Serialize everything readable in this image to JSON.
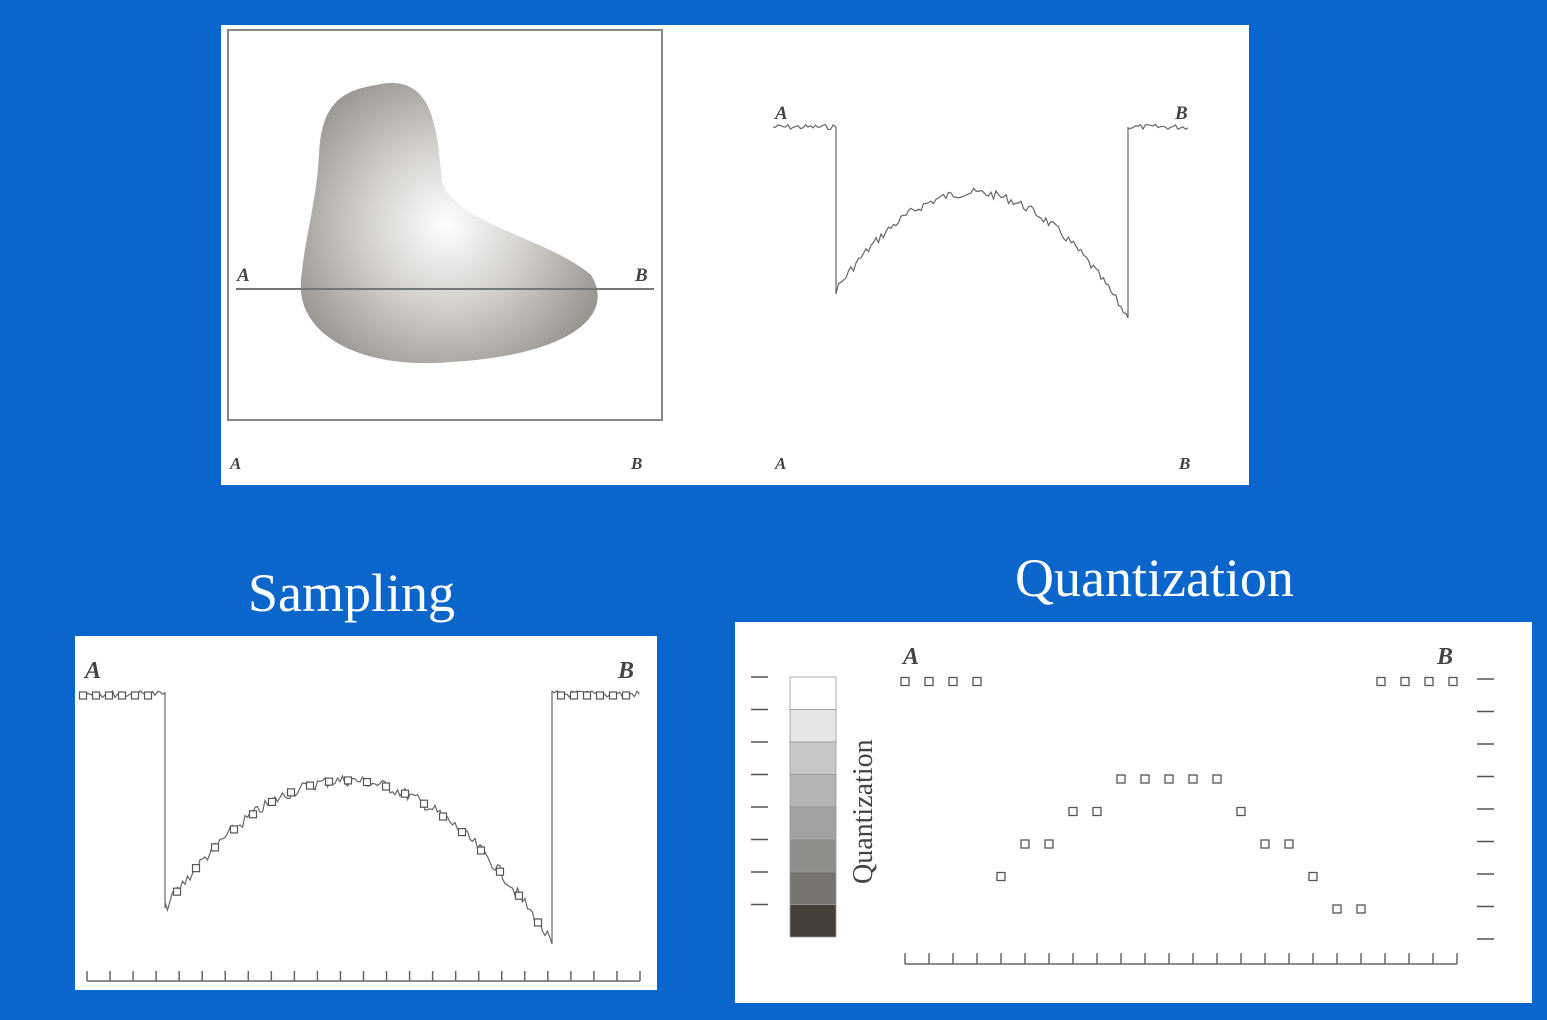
{
  "labels": {
    "start_point": "A",
    "end_point": "B"
  },
  "headings": {
    "sampling": "Sampling",
    "quantization": "Quantization"
  },
  "quantization_panel": {
    "scale_label": "Quantization",
    "gray_levels": [
      "#ffffff",
      "#e6e6e6",
      "#c9c8c6",
      "#b4b3b1",
      "#a3a19f",
      "#8f8d8a",
      "#777470",
      "#463e38"
    ],
    "sample_levels": [
      7,
      7,
      7,
      7,
      1,
      2,
      2,
      3,
      3,
      4,
      4,
      4,
      4,
      4,
      3,
      2,
      2,
      1,
      0,
      0,
      7,
      7,
      7,
      7
    ]
  },
  "colors": {
    "background": "#0b66cc",
    "panel": "#ffffff",
    "line": "#555555"
  }
}
